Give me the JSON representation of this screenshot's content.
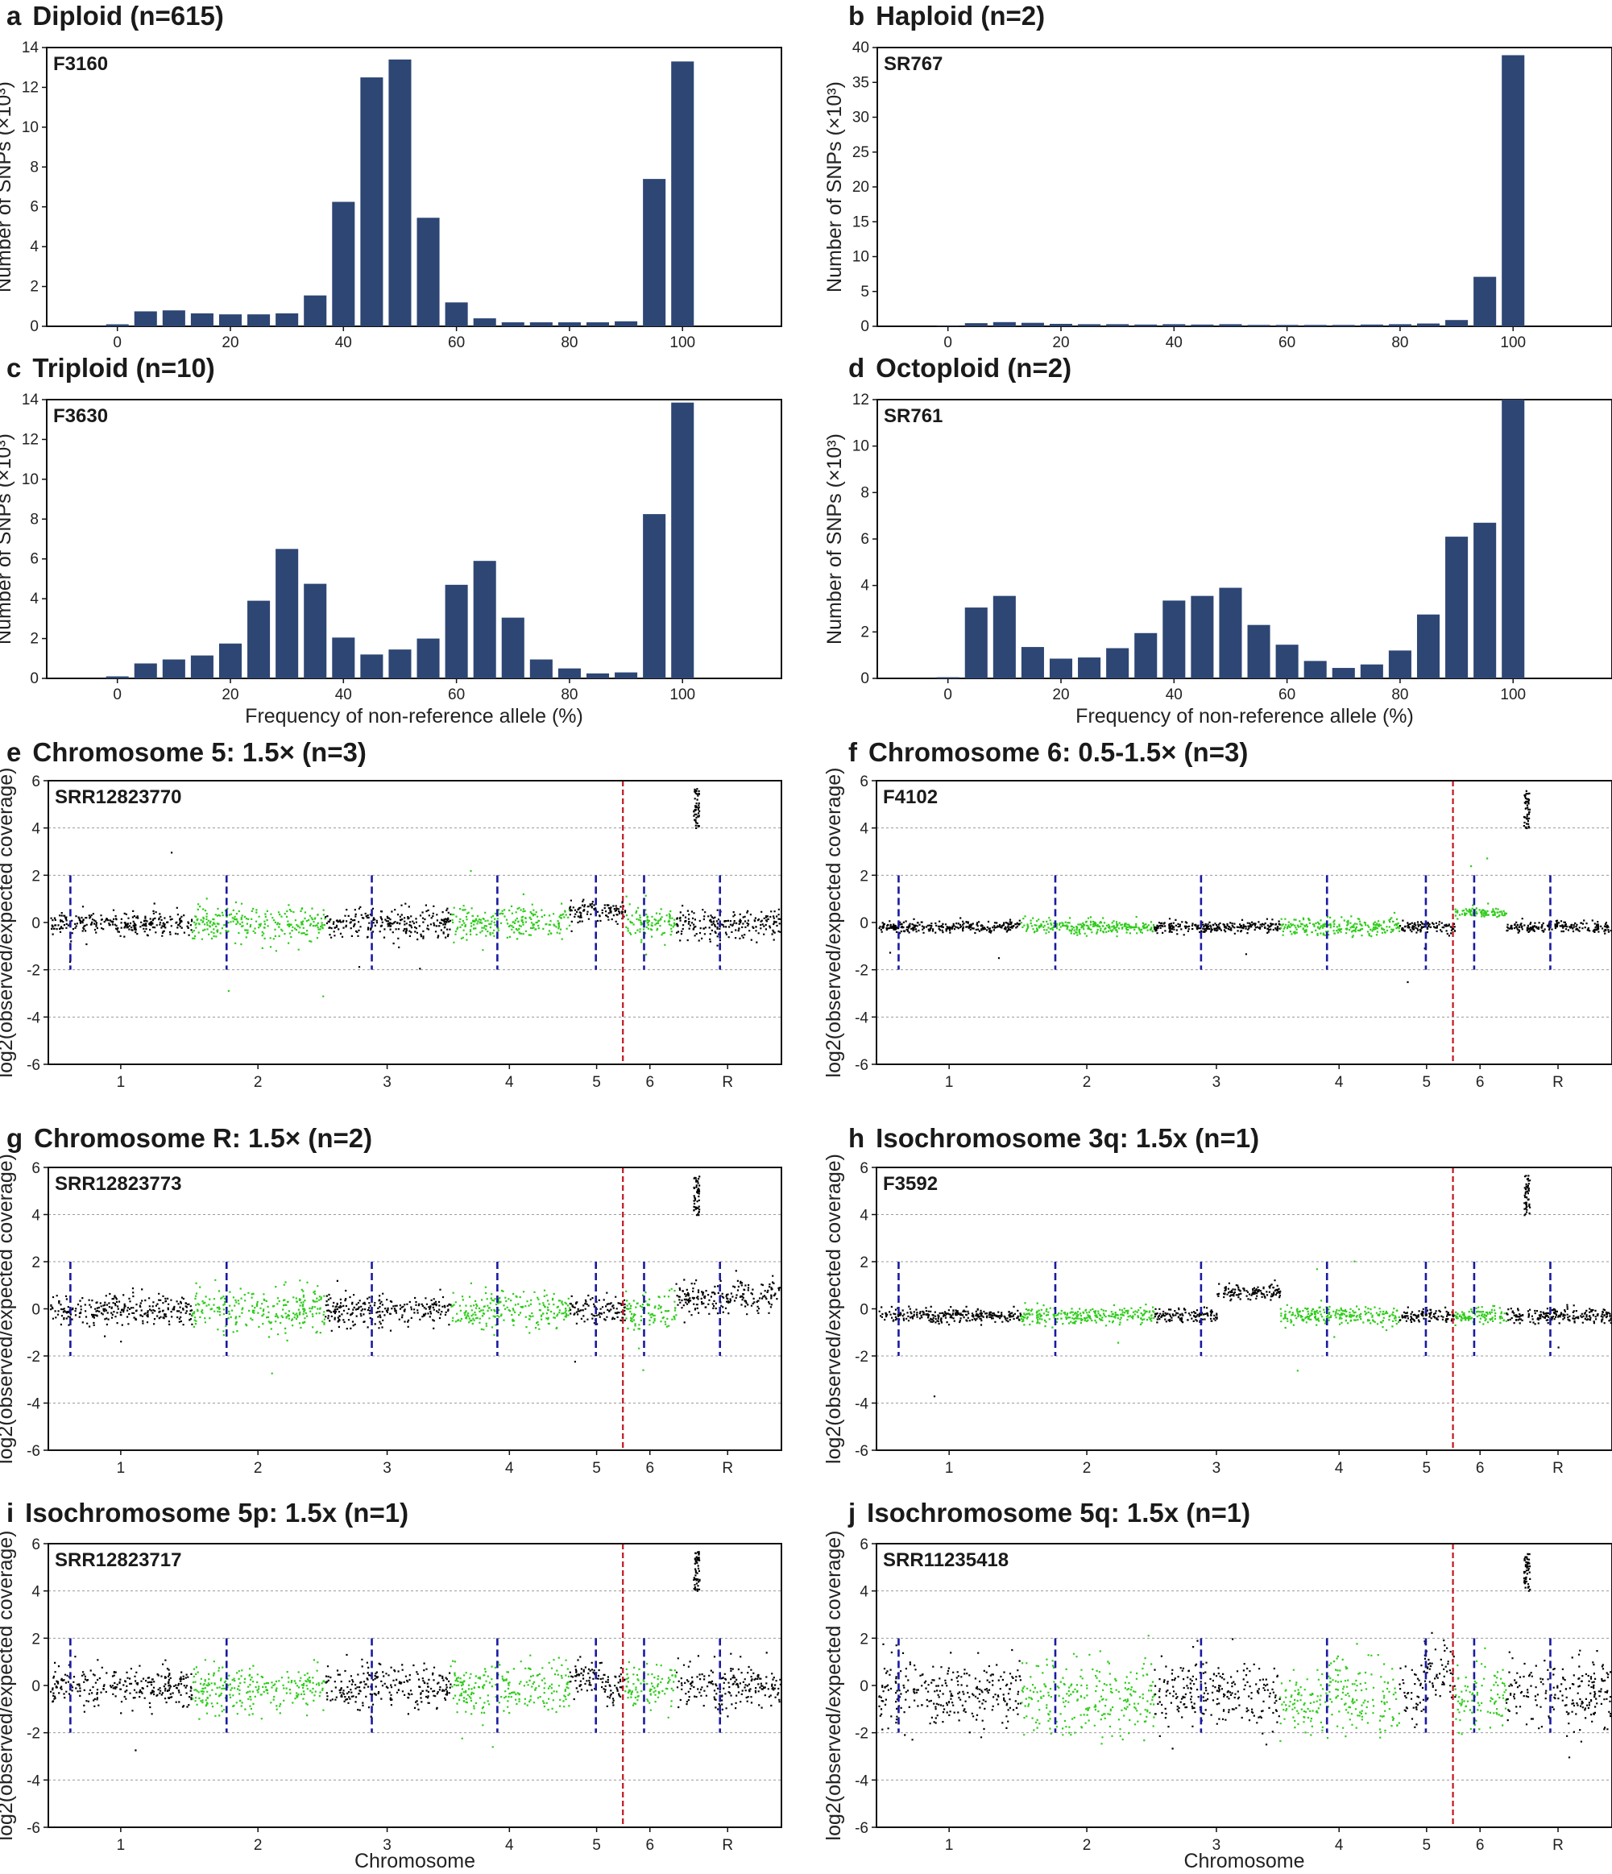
{
  "chart_data": [
    {
      "panel": "a",
      "type": "bar",
      "title": "Diploid (n=615)",
      "sample": "F3160",
      "xlabel": "",
      "ylabel": "Number of SNPs (×10³)",
      "x": [
        0,
        5,
        10,
        15,
        20,
        25,
        30,
        35,
        40,
        45,
        50,
        55,
        60,
        65,
        70,
        75,
        80,
        85,
        90,
        95,
        100
      ],
      "values": [
        0.1,
        0.75,
        0.8,
        0.65,
        0.6,
        0.6,
        0.65,
        1.55,
        6.25,
        12.5,
        13.4,
        5.45,
        1.2,
        0.4,
        0.2,
        0.2,
        0.2,
        0.2,
        0.25,
        7.4,
        13.3
      ],
      "xlim": [
        -12.5,
        117.5
      ],
      "ylim": [
        0,
        14
      ],
      "xticks": [
        0,
        20,
        40,
        60,
        80,
        100
      ],
      "yticks": [
        0,
        2,
        4,
        6,
        8,
        10,
        12,
        14
      ],
      "color": "#2d4674"
    },
    {
      "panel": "b",
      "type": "bar",
      "title": "Haploid (n=2)",
      "sample": "SR767",
      "xlabel": "",
      "ylabel": "Number of SNPs (×10³)",
      "x": [
        0,
        5,
        10,
        15,
        20,
        25,
        30,
        35,
        40,
        45,
        50,
        55,
        60,
        65,
        70,
        75,
        80,
        85,
        90,
        95,
        100
      ],
      "values": [
        0.05,
        0.45,
        0.6,
        0.5,
        0.35,
        0.3,
        0.3,
        0.25,
        0.3,
        0.25,
        0.3,
        0.2,
        0.2,
        0.2,
        0.2,
        0.25,
        0.3,
        0.4,
        0.9,
        7.1,
        38.9
      ],
      "xlim": [
        -12.5,
        117.5
      ],
      "ylim": [
        0,
        40
      ],
      "xticks": [
        0,
        20,
        40,
        60,
        80,
        100
      ],
      "yticks": [
        0,
        5,
        10,
        15,
        20,
        25,
        30,
        35,
        40
      ],
      "color": "#2d4674"
    },
    {
      "panel": "c",
      "type": "bar",
      "title": "Triploid (n=10)",
      "sample": "F3630",
      "xlabel": "Frequency of non-reference allele (%)",
      "ylabel": "Number of SNPs (×10³)",
      "x": [
        0,
        5,
        10,
        15,
        20,
        25,
        30,
        35,
        40,
        45,
        50,
        55,
        60,
        65,
        70,
        75,
        80,
        85,
        90,
        95,
        100
      ],
      "values": [
        0.1,
        0.75,
        0.95,
        1.15,
        1.75,
        3.9,
        6.5,
        4.75,
        2.05,
        1.2,
        1.45,
        2.0,
        4.7,
        5.9,
        3.05,
        0.95,
        0.5,
        0.25,
        0.3,
        8.25,
        13.85
      ],
      "xlim": [
        -12.5,
        117.5
      ],
      "ylim": [
        0,
        14
      ],
      "xticks": [
        0,
        20,
        40,
        60,
        80,
        100
      ],
      "yticks": [
        0,
        2,
        4,
        6,
        8,
        10,
        12,
        14
      ],
      "color": "#2d4674"
    },
    {
      "panel": "d",
      "type": "bar",
      "title": "Octoploid (n=2)",
      "sample": "SR761",
      "xlabel": "Frequency of non-reference allele (%)",
      "ylabel": "Number of SNPs (×10³)",
      "x": [
        0,
        5,
        10,
        15,
        20,
        25,
        30,
        35,
        40,
        45,
        50,
        55,
        60,
        65,
        70,
        75,
        80,
        85,
        90,
        95,
        100
      ],
      "values": [
        0.05,
        3.05,
        3.55,
        1.35,
        0.85,
        0.9,
        1.3,
        1.95,
        3.35,
        3.55,
        3.9,
        2.3,
        1.45,
        0.75,
        0.45,
        0.6,
        1.2,
        2.75,
        6.1,
        6.7,
        12.0
      ],
      "xlim": [
        -12.5,
        117.5
      ],
      "ylim": [
        0,
        12
      ],
      "xticks": [
        0,
        20,
        40,
        60,
        80,
        100
      ],
      "yticks": [
        0,
        2,
        4,
        6,
        8,
        10,
        12
      ],
      "color": "#2d4674"
    },
    {
      "panel": "e",
      "type": "scatter",
      "title": "Chromosome 5: 1.5× (n=3)",
      "sample": "SRR12823770",
      "xlabel": "",
      "ylabel": "log2(observed/expected coverage)",
      "ylim": [
        -6,
        6
      ],
      "yticks": [
        -6,
        -4,
        -2,
        0,
        2,
        4,
        6
      ],
      "gridlines_y": [
        -4,
        -2,
        2,
        4
      ],
      "chromosomes": [
        "1",
        "2",
        "3",
        "4",
        "5",
        "6",
        "R"
      ],
      "segments": [
        {
          "chrom": "1",
          "color": "black",
          "mean": 0.0,
          "spread": 0.22
        },
        {
          "chrom": "2",
          "color": "green",
          "mean": 0.0,
          "spread": 0.35
        },
        {
          "chrom": "3",
          "color": "black",
          "mean": 0.0,
          "spread": 0.3
        },
        {
          "chrom": "4",
          "color": "green",
          "mean": 0.0,
          "spread": 0.35
        },
        {
          "chrom": "5",
          "color": "black",
          "mean": 0.5,
          "spread": 0.25
        },
        {
          "chrom": "6",
          "color": "green",
          "mean": 0.0,
          "spread": 0.35
        },
        {
          "chrom": "R",
          "color": "black",
          "mean": 0.0,
          "spread": 0.3
        }
      ]
    },
    {
      "panel": "f",
      "type": "scatter",
      "title": "Chromosome 6: 0.5-1.5× (n=3)",
      "sample": "F4102",
      "xlabel": "",
      "ylabel": "log2(observed/expected coverage)",
      "ylim": [
        -6,
        6
      ],
      "yticks": [
        -6,
        -4,
        -2,
        0,
        2,
        4,
        6
      ],
      "gridlines_y": [
        -4,
        -2,
        2,
        4
      ],
      "chromosomes": [
        "1",
        "2",
        "3",
        "4",
        "5",
        "6",
        "R"
      ],
      "segments": [
        {
          "chrom": "1",
          "color": "black",
          "mean": -0.15,
          "spread": 0.12
        },
        {
          "chrom": "2",
          "color": "green",
          "mean": -0.15,
          "spread": 0.15
        },
        {
          "chrom": "3",
          "color": "black",
          "mean": -0.15,
          "spread": 0.12
        },
        {
          "chrom": "4",
          "color": "green",
          "mean": -0.15,
          "spread": 0.18
        },
        {
          "chrom": "5",
          "color": "black",
          "mean": -0.15,
          "spread": 0.12
        },
        {
          "chrom": "6",
          "color": "green",
          "mean": 0.45,
          "spread": 0.1
        },
        {
          "chrom": "R",
          "color": "black",
          "mean": -0.15,
          "spread": 0.12
        }
      ]
    },
    {
      "panel": "g",
      "type": "scatter",
      "title": "Chromosome R: 1.5× (n=2)",
      "sample": "SRR12823773",
      "xlabel": "",
      "ylabel": "log2(observed/expected coverage)",
      "ylim": [
        -6,
        6
      ],
      "yticks": [
        -6,
        -4,
        -2,
        0,
        2,
        4,
        6
      ],
      "gridlines_y": [
        -4,
        -2,
        2,
        4
      ],
      "chromosomes": [
        "1",
        "2",
        "3",
        "4",
        "5",
        "6",
        "R"
      ],
      "segments": [
        {
          "chrom": "1",
          "color": "black",
          "mean": 0.0,
          "spread": 0.3
        },
        {
          "chrom": "2",
          "color": "green",
          "mean": 0.0,
          "spread": 0.45
        },
        {
          "chrom": "3",
          "color": "black",
          "mean": 0.0,
          "spread": 0.35
        },
        {
          "chrom": "4",
          "color": "green",
          "mean": 0.0,
          "spread": 0.42
        },
        {
          "chrom": "5",
          "color": "black",
          "mean": 0.0,
          "spread": 0.3
        },
        {
          "chrom": "6",
          "color": "green",
          "mean": 0.0,
          "spread": 0.4
        },
        {
          "chrom": "R",
          "color": "black",
          "mean": 0.55,
          "spread": 0.35
        }
      ]
    },
    {
      "panel": "h",
      "type": "scatter",
      "title": "Isochromosome 3q: 1.5x (n=1)",
      "sample": "F3592",
      "xlabel": "",
      "ylabel": "log2(observed/expected coverage)",
      "ylim": [
        -6,
        6
      ],
      "yticks": [
        -6,
        -4,
        -2,
        0,
        2,
        4,
        6
      ],
      "gridlines_y": [
        -4,
        -2,
        2,
        4
      ],
      "chromosomes": [
        "1",
        "2",
        "3",
        "4",
        "5",
        "6",
        "R"
      ],
      "segments": [
        {
          "chrom": "1",
          "color": "black",
          "mean": -0.25,
          "spread": 0.15
        },
        {
          "chrom": "2",
          "color": "green",
          "mean": -0.25,
          "spread": 0.18
        },
        {
          "chrom": "3",
          "color": "black",
          "mean": -0.25,
          "spread": 0.15,
          "split": 0.5,
          "mean2": 0.75
        },
        {
          "chrom": "4",
          "color": "green",
          "mean": -0.25,
          "spread": 0.2
        },
        {
          "chrom": "5",
          "color": "black",
          "mean": -0.25,
          "spread": 0.15
        },
        {
          "chrom": "6",
          "color": "green",
          "mean": -0.25,
          "spread": 0.18
        },
        {
          "chrom": "R",
          "color": "black",
          "mean": -0.25,
          "spread": 0.15
        }
      ]
    },
    {
      "panel": "i",
      "type": "scatter",
      "title": "Isochromosome 5p: 1.5x (n=1)",
      "sample": "SRR12823717",
      "xlabel": "Chromosome",
      "ylabel": "log2(observed/expected coverage)",
      "ylim": [
        -6,
        6
      ],
      "yticks": [
        -6,
        -4,
        -2,
        0,
        2,
        4,
        6
      ],
      "gridlines_y": [
        -4,
        -2,
        2,
        4
      ],
      "chromosomes": [
        "1",
        "2",
        "3",
        "4",
        "5",
        "6",
        "R"
      ],
      "segments": [
        {
          "chrom": "1",
          "color": "black",
          "mean": 0.0,
          "spread": 0.4
        },
        {
          "chrom": "2",
          "color": "green",
          "mean": -0.1,
          "spread": 0.5
        },
        {
          "chrom": "3",
          "color": "black",
          "mean": 0.0,
          "spread": 0.5
        },
        {
          "chrom": "4",
          "color": "green",
          "mean": 0.0,
          "spread": 0.55
        },
        {
          "chrom": "5",
          "color": "black",
          "mean": 0.55,
          "spread": 0.35,
          "split": 0.55,
          "mean2": -0.1
        },
        {
          "chrom": "6",
          "color": "green",
          "mean": 0.0,
          "spread": 0.5
        },
        {
          "chrom": "R",
          "color": "black",
          "mean": 0.0,
          "spread": 0.5
        }
      ]
    },
    {
      "panel": "j",
      "type": "scatter",
      "title": "Isochromosome 5q: 1.5x (n=1)",
      "sample": "SRR11235418",
      "xlabel": "Chromosome",
      "ylabel": "log2(observed/expected coverage)",
      "ylim": [
        -6,
        6
      ],
      "yticks": [
        -6,
        -4,
        -2,
        0,
        2,
        4,
        6
      ],
      "gridlines_y": [
        -4,
        -2,
        2,
        4
      ],
      "chromosomes": [
        "1",
        "2",
        "3",
        "4",
        "5",
        "6",
        "R"
      ],
      "segments": [
        {
          "chrom": "1",
          "color": "black",
          "mean": -0.3,
          "spread": 0.7
        },
        {
          "chrom": "2",
          "color": "green",
          "mean": -0.5,
          "spread": 0.8
        },
        {
          "chrom": "3",
          "color": "black",
          "mean": -0.3,
          "spread": 0.7
        },
        {
          "chrom": "4",
          "color": "green",
          "mean": -0.5,
          "spread": 0.8
        },
        {
          "chrom": "5",
          "color": "black",
          "mean": -0.3,
          "spread": 0.6,
          "split": 0.45,
          "mean2": 0.8
        },
        {
          "chrom": "6",
          "color": "green",
          "mean": -0.5,
          "spread": 0.7
        },
        {
          "chrom": "R",
          "color": "black",
          "mean": -0.3,
          "spread": 0.7
        }
      ]
    }
  ],
  "colors": {
    "bar": "#2d4674",
    "green_points": "#2ecc1a",
    "black_points": "#000000",
    "centromere_line": "#1a1aa0",
    "chr5_boundary_line": "#c0161e",
    "grid": "#9a9a9a"
  }
}
